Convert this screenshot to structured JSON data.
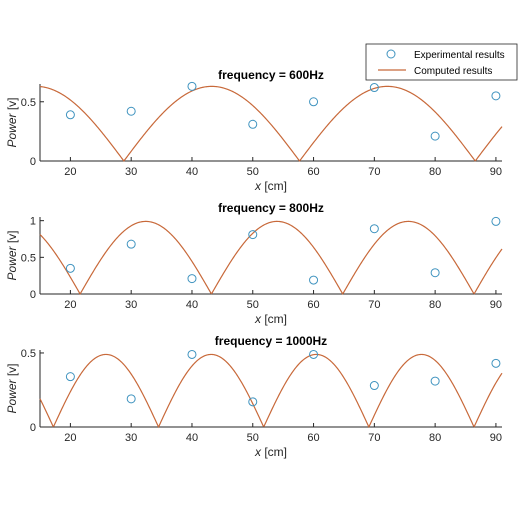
{
  "legend": {
    "experimental_label": "Experimental results",
    "computed_label": "Computed results"
  },
  "colors": {
    "experimental": "#3f93bf",
    "computed": "#c8693a",
    "axis": "#262626"
  },
  "chart_data": [
    {
      "type": "scatter",
      "title": "frequency = 600Hz",
      "xlabel_var": "x",
      "xlabel_unit": "[cm]",
      "ylabel_var": "Power",
      "ylabel_unit": "[v]",
      "xlim": [
        15,
        91
      ],
      "ylim": [
        0,
        0.65
      ],
      "xticks": [
        20,
        30,
        40,
        50,
        60,
        70,
        80,
        90
      ],
      "yticks": [
        0,
        0.5
      ],
      "ytick_labels": [
        "0",
        "0.5"
      ],
      "legend_position": "top-right",
      "series": [
        {
          "name": "Experimental results",
          "marker": "open-circle",
          "x": [
            20,
            30,
            40,
            50,
            60,
            70,
            80,
            90
          ],
          "y": [
            0.39,
            0.42,
            0.63,
            0.31,
            0.5,
            0.62,
            0.21,
            0.55
          ]
        },
        {
          "name": "Computed results",
          "line": true,
          "function": "abs-sin",
          "amplitude": 0.63,
          "period": 28.9,
          "zero_at": 28.8
        }
      ]
    },
    {
      "type": "scatter",
      "title": "frequency = 800Hz",
      "xlabel_var": "x",
      "xlabel_unit": "[cm]",
      "ylabel_var": "Power",
      "ylabel_unit": "[v]",
      "xlim": [
        15,
        91
      ],
      "ylim": [
        0,
        1.05
      ],
      "xticks": [
        20,
        30,
        40,
        50,
        60,
        70,
        80,
        90
      ],
      "yticks": [
        0,
        0.5,
        1
      ],
      "ytick_labels": [
        "0",
        "0.5",
        "1"
      ],
      "series": [
        {
          "name": "Experimental results",
          "marker": "open-circle",
          "x": [
            20,
            30,
            40,
            50,
            60,
            70,
            80,
            90
          ],
          "y": [
            0.35,
            0.68,
            0.21,
            0.81,
            0.19,
            0.89,
            0.29,
            0.99
          ]
        },
        {
          "name": "Computed results",
          "line": true,
          "function": "abs-sin",
          "amplitude": 0.99,
          "period": 21.6,
          "zero_at": 21.6
        }
      ]
    },
    {
      "type": "scatter",
      "title": "frequency = 1000Hz",
      "xlabel_var": "x",
      "xlabel_unit": "[cm]",
      "ylabel_var": "Power",
      "ylabel_unit": "[v]",
      "xlim": [
        15,
        91
      ],
      "ylim": [
        0,
        0.52
      ],
      "xticks": [
        20,
        30,
        40,
        50,
        60,
        70,
        80,
        90
      ],
      "yticks": [
        0,
        0.5
      ],
      "ytick_labels": [
        "0",
        "0.5"
      ],
      "series": [
        {
          "name": "Experimental results",
          "marker": "open-circle",
          "x": [
            20,
            30,
            40,
            50,
            60,
            70,
            80,
            90
          ],
          "y": [
            0.34,
            0.19,
            0.49,
            0.17,
            0.49,
            0.28,
            0.31,
            0.43
          ]
        },
        {
          "name": "Computed results",
          "line": true,
          "function": "abs-sin",
          "amplitude": 0.49,
          "period": 17.3,
          "zero_at": 17.2
        }
      ]
    }
  ]
}
